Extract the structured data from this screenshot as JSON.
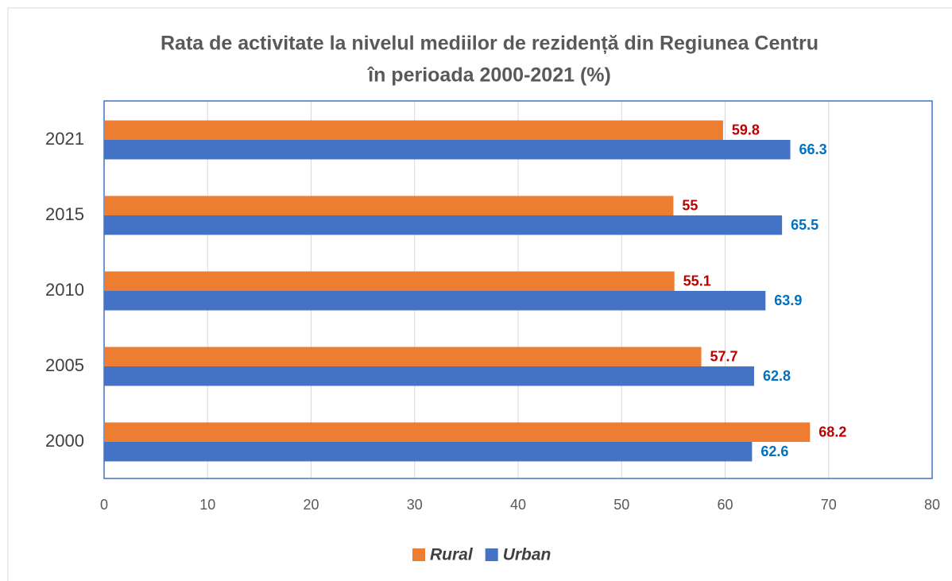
{
  "chart_data": {
    "type": "hbar",
    "title": [
      "Rata de activitate la nivelul mediilor de rezidență din Regiunea Centru",
      "în perioada 2000-2021 (%)"
    ],
    "categories": [
      "2021",
      "2015",
      "2010",
      "2005",
      "2000"
    ],
    "series": [
      {
        "name": "Rural",
        "color": "#ED7D31",
        "label_color": "#C00000",
        "values": [
          59.8,
          55,
          55.1,
          57.7,
          68.2
        ]
      },
      {
        "name": "Urban",
        "color": "#4472C4",
        "label_color": "#0070C0",
        "values": [
          66.3,
          65.5,
          63.9,
          62.8,
          62.6
        ]
      }
    ],
    "xlim": [
      0,
      80
    ],
    "xticks": [
      0,
      10,
      20,
      30,
      40,
      50,
      60,
      70,
      80
    ],
    "grid": true,
    "legend": "bottom"
  }
}
